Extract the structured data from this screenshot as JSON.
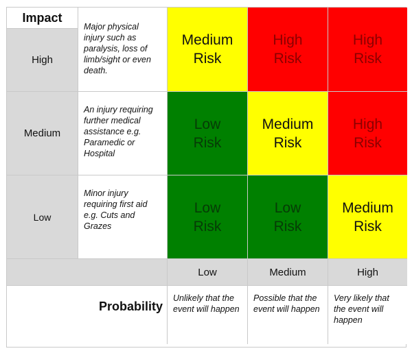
{
  "impact_header": "Impact",
  "rows": [
    {
      "level": "High",
      "description": "Major physical injury such as paralysis, loss of limb/sight or even death.",
      "cells": [
        {
          "line1": "Medium",
          "line2": "Risk",
          "color": "#ffff00"
        },
        {
          "line1": "High",
          "line2": "Risk",
          "color": "#ff0000"
        },
        {
          "line1": "High",
          "line2": "Risk",
          "color": "#ff0000"
        }
      ]
    },
    {
      "level": "Medium",
      "description": "An injury requiring further medical assistance e.g. Paramedic or Hospital",
      "cells": [
        {
          "line1": "Low",
          "line2": "Risk",
          "color": "#008000"
        },
        {
          "line1": "Medium",
          "line2": "Risk",
          "color": "#ffff00"
        },
        {
          "line1": "High",
          "line2": "Risk",
          "color": "#ff0000"
        }
      ]
    },
    {
      "level": "Low",
      "description": "Minor injury requiring first aid e.g. Cuts and Grazes",
      "cells": [
        {
          "line1": "Low",
          "line2": "Risk",
          "color": "#008000"
        },
        {
          "line1": "Low",
          "line2": "Risk",
          "color": "#008000"
        },
        {
          "line1": "Medium",
          "line2": "Risk",
          "color": "#ffff00"
        }
      ]
    }
  ],
  "probability_header": "Probability",
  "probability_levels": [
    "Low",
    "Medium",
    "High"
  ],
  "probability_descriptions": [
    "Unlikely that the event will happen",
    "Possible that the event will happen",
    "Very likely that the event will happen"
  ]
}
